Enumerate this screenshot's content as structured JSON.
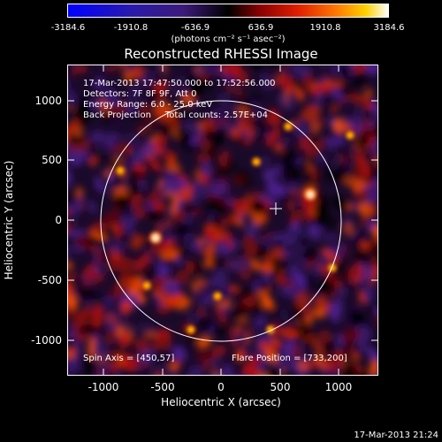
{
  "colorbar": {
    "ticks": [
      "-3184.6",
      "-1910.8",
      "-636.9",
      "636.9",
      "1910.8",
      "3184.6"
    ],
    "units": "(photons cm⁻² s⁻¹ asec⁻²)"
  },
  "title": "Reconstructed RHESSI Image",
  "info": {
    "line1": "17-Mar-2013 17:47:50.000 to 17:52:56.000",
    "line2": "Detectors: 7F 8F 9F, Att 0",
    "line3": "Energy Range: 6.0 - 25.0 keV",
    "line4": "Back Projection     Total counts: 2.57E+04"
  },
  "footer": {
    "spin_axis": "Spin Axis = [450,57]",
    "flare_position": "Flare Position = [733,200]"
  },
  "axes": {
    "xlabel": "Heliocentric X (arcsec)",
    "ylabel": "Heliocentric Y (arcsec)",
    "xticks": [
      "-1000",
      "-500",
      "0",
      "500",
      "1000"
    ],
    "yticks": [
      "1000",
      "500",
      "0",
      "-500",
      "-1000"
    ]
  },
  "timestamp": "17-Mar-2013 21:24",
  "colors": {
    "background": "#000000",
    "colormap": [
      "#0000ff",
      "#4b1a8a",
      "#000000",
      "#b00000",
      "#ff5a00",
      "#ffd700",
      "#ffffff"
    ]
  }
}
